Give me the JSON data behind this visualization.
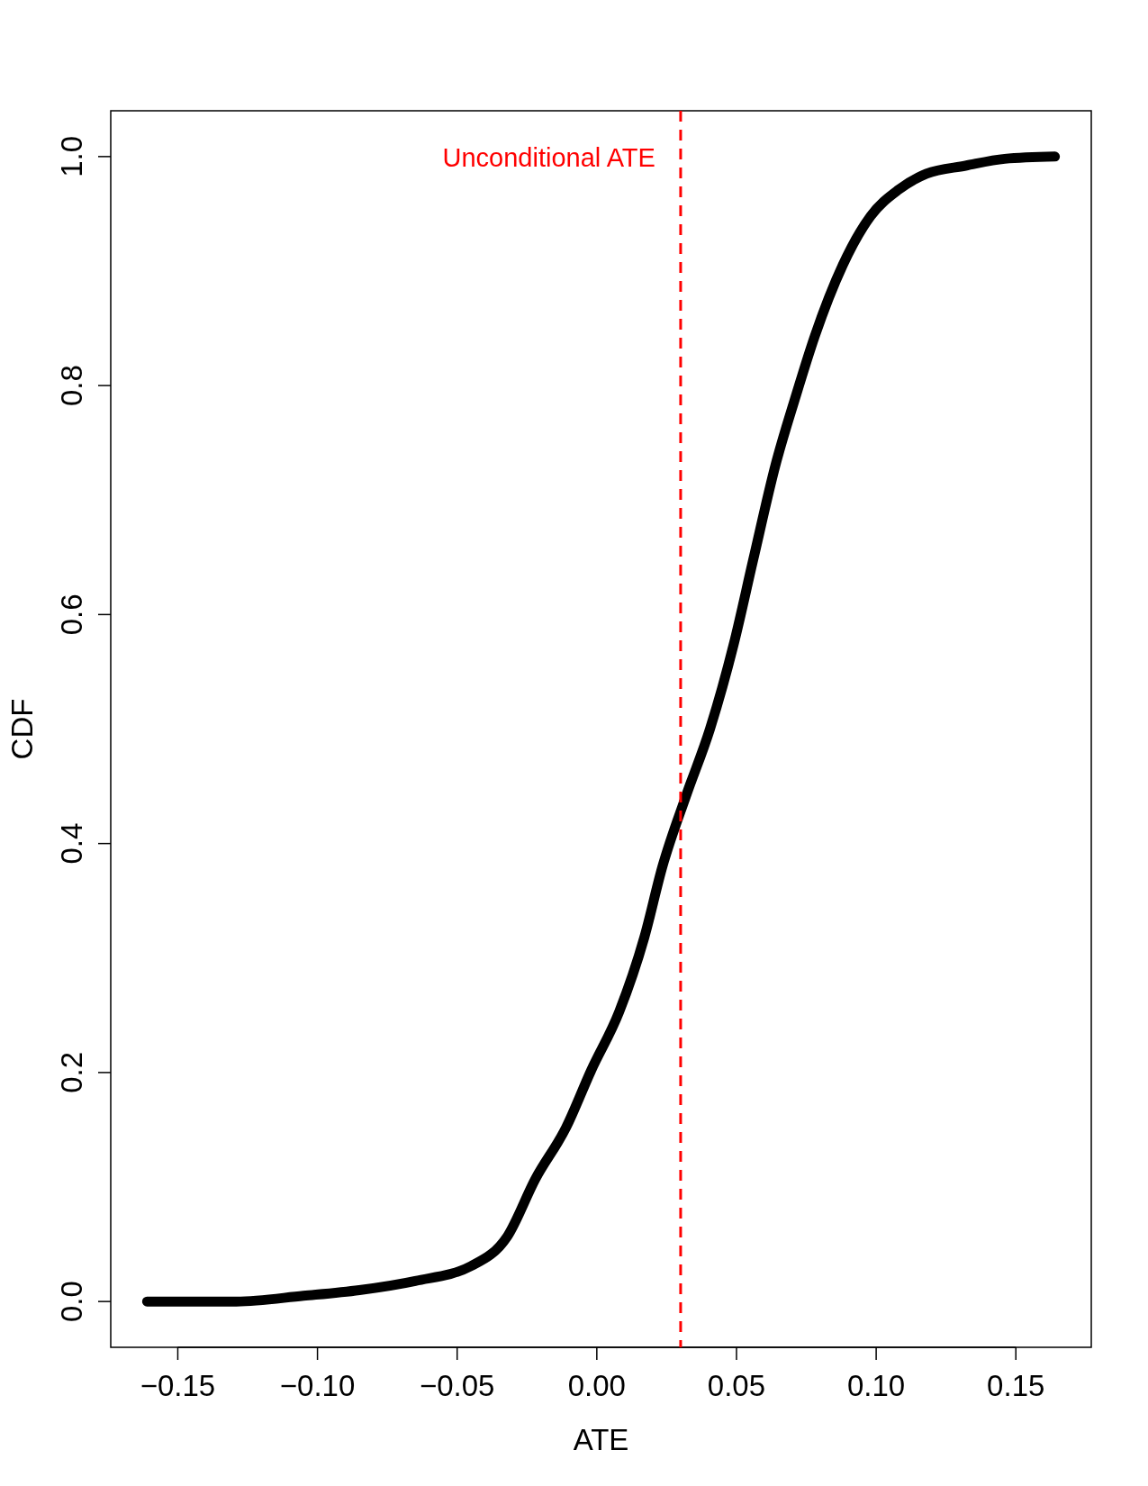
{
  "chart_data": {
    "type": "line",
    "xlabel": "ATE",
    "ylabel": "CDF",
    "xlim": [
      -0.174,
      0.177
    ],
    "ylim": [
      -0.04,
      1.04
    ],
    "xticks": [
      {
        "value": -0.15,
        "label": "−0.15"
      },
      {
        "value": -0.1,
        "label": "−0.10"
      },
      {
        "value": -0.05,
        "label": "−0.05"
      },
      {
        "value": 0,
        "label": "0.00"
      },
      {
        "value": 0.05,
        "label": "0.05"
      },
      {
        "value": 0.1,
        "label": "0.10"
      },
      {
        "value": 0.15,
        "label": "0.15"
      }
    ],
    "yticks": [
      {
        "value": 0,
        "label": "0.0"
      },
      {
        "value": 0.2,
        "label": "0.2"
      },
      {
        "value": 0.4,
        "label": "0.4"
      },
      {
        "value": 0.6,
        "label": "0.6"
      },
      {
        "value": 0.8,
        "label": "0.8"
      },
      {
        "value": 1,
        "label": "1.0"
      }
    ],
    "line_style": "solid",
    "series": [
      {
        "color": "#000000",
        "x": [
          -0.161,
          -0.129,
          -0.105,
          -0.085,
          -0.065,
          -0.045,
          -0.032,
          -0.022,
          -0.011,
          -0.002,
          0.008,
          0.017,
          0.0235,
          0.032,
          0.0405,
          0.049,
          0.056,
          0.064,
          0.071,
          0.078,
          0.088,
          0.098,
          0.108,
          0.118,
          0.132,
          0.146,
          0.164
        ],
        "values": [
          0,
          0,
          0.005,
          0.01,
          0.018,
          0.031,
          0.057,
          0.107,
          0.152,
          0.202,
          0.253,
          0.318,
          0.38,
          0.442,
          0.5,
          0.574,
          0.648,
          0.731,
          0.789,
          0.843,
          0.905,
          0.948,
          0.971,
          0.985,
          0.992,
          0.998,
          1.0
        ]
      }
    ],
    "ref_lines": [
      {
        "axis": "x",
        "value": 0.03,
        "label": "Unconditional ATE",
        "color": "#ff0000",
        "line_style": "dashed"
      }
    ]
  }
}
